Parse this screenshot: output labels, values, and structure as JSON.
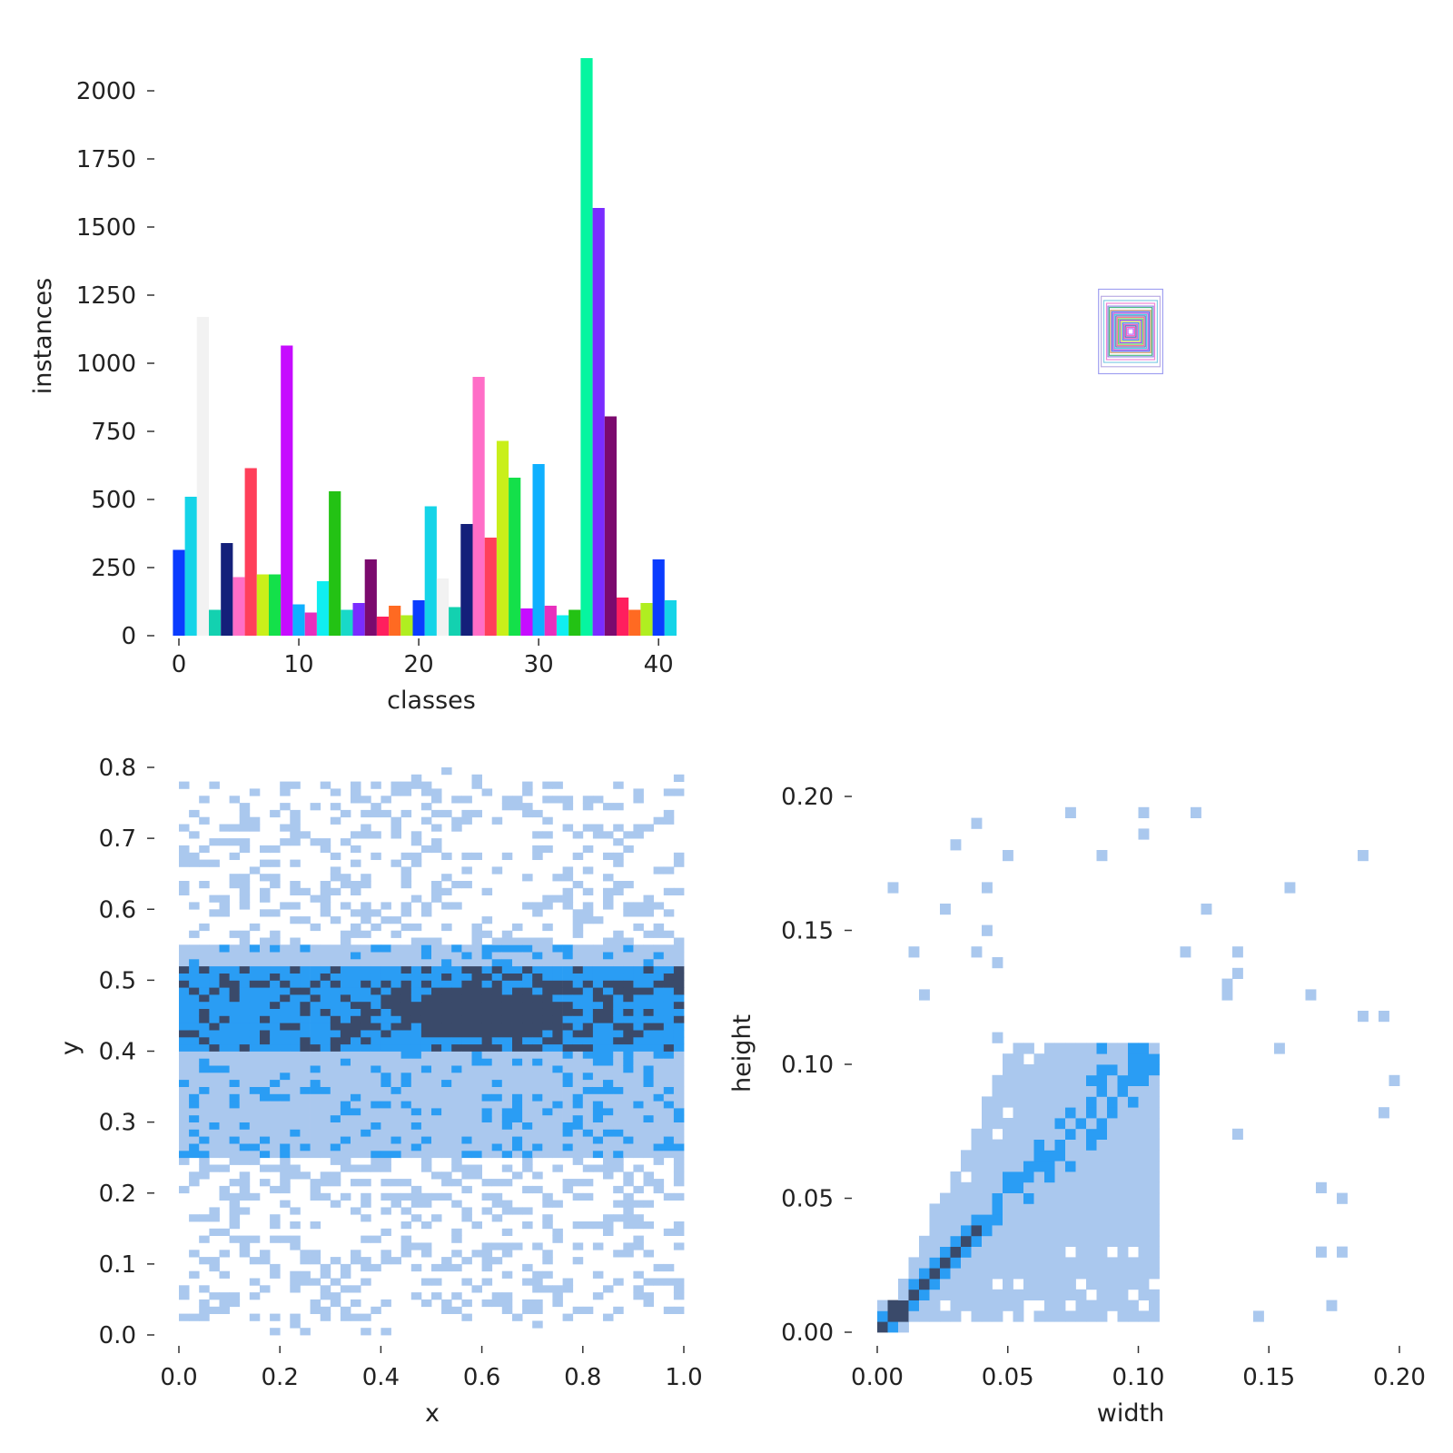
{
  "chart_data": [
    {
      "type": "bar",
      "xlabel": "classes",
      "ylabel": "instances",
      "xlim": [
        -1,
        41.5
      ],
      "ylim": [
        0,
        2120
      ],
      "xticks": [
        "0",
        "10",
        "20",
        "30",
        "40"
      ],
      "yticks": [
        "0",
        "250",
        "500",
        "750",
        "1000",
        "1250",
        "1500",
        "1750",
        "2000"
      ],
      "categories": [
        0,
        1,
        2,
        3,
        4,
        5,
        6,
        7,
        8,
        9,
        10,
        11,
        12,
        13,
        14,
        15,
        16,
        17,
        18,
        19,
        20,
        21,
        22,
        23,
        24,
        25,
        26,
        27,
        28,
        29,
        30,
        31,
        32,
        33,
        34,
        35,
        36,
        37,
        38,
        39,
        40,
        41
      ],
      "values": [
        315,
        510,
        1170,
        95,
        340,
        215,
        615,
        225,
        225,
        1065,
        115,
        85,
        200,
        530,
        95,
        120,
        280,
        70,
        110,
        75,
        130,
        475,
        210,
        105,
        410,
        950,
        360,
        715,
        580,
        100,
        630,
        110,
        75,
        95,
        2120,
        1570,
        805,
        140,
        95,
        120,
        280,
        130
      ],
      "colors": [
        "#0a3cff",
        "#15d4e8",
        "#f2f2f2",
        "#13d1b0",
        "#14207a",
        "#ff6ec7",
        "#ff3f5a",
        "#c9ef1a",
        "#14e04a",
        "#c60cff",
        "#0fb0ff",
        "#e82fbd",
        "#10eef0",
        "#23c214",
        "#18d9c8",
        "#7a2cff",
        "#7b0a6e",
        "#ff1f5e",
        "#ff6a22",
        "#b0ee20",
        "#0a3cff",
        "#15d4e8",
        "#f2f2f2",
        "#13d1b0",
        "#14207a",
        "#ff6ec7",
        "#ff3f5a",
        "#c9ef1a",
        "#14e04a",
        "#c60cff",
        "#0fb0ff",
        "#e82fbd",
        "#10eef0",
        "#23c214",
        "#06f5a0",
        "#7a2cff",
        "#7b0a6e",
        "#ff1f5e",
        "#ff6a22",
        "#b0ee20",
        "#0a3cff",
        "#15d4e8"
      ]
    },
    {
      "type": "boxes-overlay",
      "boxes": [
        {
          "w": 0.12,
          "h": 0.3,
          "color": "#8888ee"
        },
        {
          "w": 0.11,
          "h": 0.25,
          "color": "#aa99dd"
        },
        {
          "w": 0.1,
          "h": 0.22,
          "color": "#66c0e0"
        },
        {
          "w": 0.09,
          "h": 0.2,
          "color": "#ee66cc"
        },
        {
          "w": 0.085,
          "h": 0.18,
          "color": "#7070dd"
        },
        {
          "w": 0.08,
          "h": 0.17,
          "color": "#22aa66"
        },
        {
          "w": 0.075,
          "h": 0.15,
          "color": "#cc8844"
        },
        {
          "w": 0.07,
          "h": 0.14,
          "color": "#3355ff"
        },
        {
          "w": 0.065,
          "h": 0.13,
          "color": "#aa22cc"
        },
        {
          "w": 0.06,
          "h": 0.12,
          "color": "#22ccdd"
        },
        {
          "w": 0.055,
          "h": 0.11,
          "color": "#4444aa"
        },
        {
          "w": 0.05,
          "h": 0.1,
          "color": "#ff5577"
        },
        {
          "w": 0.045,
          "h": 0.09,
          "color": "#33cc33"
        },
        {
          "w": 0.04,
          "h": 0.08,
          "color": "#7722ee"
        },
        {
          "w": 0.035,
          "h": 0.07,
          "color": "#ccdd22"
        },
        {
          "w": 0.03,
          "h": 0.06,
          "color": "#1166ff"
        },
        {
          "w": 0.025,
          "h": 0.05,
          "color": "#dd33aa"
        },
        {
          "w": 0.02,
          "h": 0.04,
          "color": "#2244aa"
        },
        {
          "w": 0.015,
          "h": 0.03,
          "color": "#ff33aa"
        },
        {
          "w": 0.01,
          "h": 0.02,
          "color": "#aa44ff"
        }
      ]
    },
    {
      "type": "heatmap",
      "xlabel": "x",
      "ylabel": "y",
      "xlim": [
        0.0,
        1.0
      ],
      "ylim": [
        0.0,
        0.8
      ],
      "xticks": [
        "0.0",
        "0.2",
        "0.4",
        "0.6",
        "0.8",
        "1.0"
      ],
      "yticks": [
        "0.0",
        "0.1",
        "0.2",
        "0.3",
        "0.4",
        "0.5",
        "0.6",
        "0.7",
        "0.8"
      ],
      "bins": [
        50,
        80
      ],
      "colormap": [
        "#ffffff",
        "#aac8ee",
        "#2a9df4",
        "#3a4a6a"
      ]
    },
    {
      "type": "heatmap",
      "xlabel": "width",
      "ylabel": "height",
      "xlim": [
        0.0,
        0.2
      ],
      "ylim": [
        0.0,
        0.2
      ],
      "xticks": [
        "0.00",
        "0.05",
        "0.10",
        "0.15",
        "0.20"
      ],
      "yticks": [
        "0.00",
        "0.05",
        "0.10",
        "0.15",
        "0.20"
      ],
      "bins": [
        50,
        50
      ],
      "colormap": [
        "#ffffff",
        "#aac8ee",
        "#2a9df4",
        "#3a4a6a"
      ]
    }
  ]
}
